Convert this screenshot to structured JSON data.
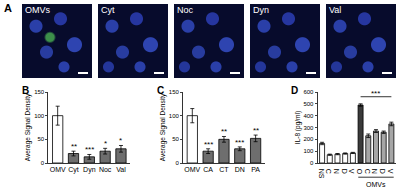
{
  "panel_a": {
    "label": "A",
    "images": [
      "OMVs",
      "Cyt",
      "Noc",
      "Dyn",
      "Val"
    ]
  },
  "chart_data": [
    {
      "type": "bar",
      "label": "B",
      "y_label": "Average Signal Density",
      "categories": [
        "OMV",
        "Cyt",
        "Dyn",
        "Noc",
        "Val"
      ],
      "values": [
        100,
        20,
        13,
        25,
        30
      ],
      "errors": [
        20,
        5,
        5,
        6,
        7
      ],
      "significance": [
        null,
        "**",
        "***",
        "*",
        "*"
      ],
      "colors": [
        "#ffffff",
        "#6e6e6e",
        "#6e6e6e",
        "#6e6e6e",
        "#6e6e6e"
      ],
      "ylim": [
        0,
        150
      ],
      "yticks": [
        0,
        50,
        100,
        150
      ],
      "grid": false
    },
    {
      "type": "bar",
      "label": "C",
      "y_label": "Average Signal Density",
      "categories": [
        "OMV",
        "CA",
        "CT",
        "DN",
        "PA"
      ],
      "values": [
        100,
        25,
        50,
        30,
        52
      ],
      "errors": [
        15,
        5,
        6,
        4,
        7
      ],
      "significance": [
        null,
        "***",
        "**",
        "***",
        "**"
      ],
      "colors": [
        "#ffffff",
        "#6e6e6e",
        "#6e6e6e",
        "#6e6e6e",
        "#6e6e6e"
      ],
      "ylim": [
        0,
        150
      ],
      "yticks": [
        0,
        50,
        100,
        150
      ],
      "grid": false
    },
    {
      "type": "bar",
      "label": "D",
      "y_label": "IL-8 (pg/ml)",
      "categories": [
        "NS",
        "C",
        "N",
        "D",
        "V",
        "O",
        "C",
        "N",
        "D",
        "V"
      ],
      "values": [
        165,
        70,
        75,
        80,
        85,
        490,
        230,
        270,
        260,
        330
      ],
      "errors": [
        10,
        5,
        5,
        5,
        5,
        10,
        15,
        12,
        10,
        15
      ],
      "colors": [
        "#ffffff",
        "#ffffff",
        "#ffffff",
        "#ffffff",
        "#ffffff",
        "#3a3a3a",
        "#a6a6a6",
        "#a6a6a6",
        "#a6a6a6",
        "#a6a6a6"
      ],
      "group": {
        "text": "OMVs",
        "span": [
          5,
          9
        ]
      },
      "bracket": {
        "text": "***",
        "span": [
          5,
          9
        ],
        "y": 560
      },
      "ylim": [
        0,
        600
      ],
      "yticks": [
        0,
        100,
        200,
        300,
        400,
        500,
        600
      ],
      "grid": false
    }
  ]
}
